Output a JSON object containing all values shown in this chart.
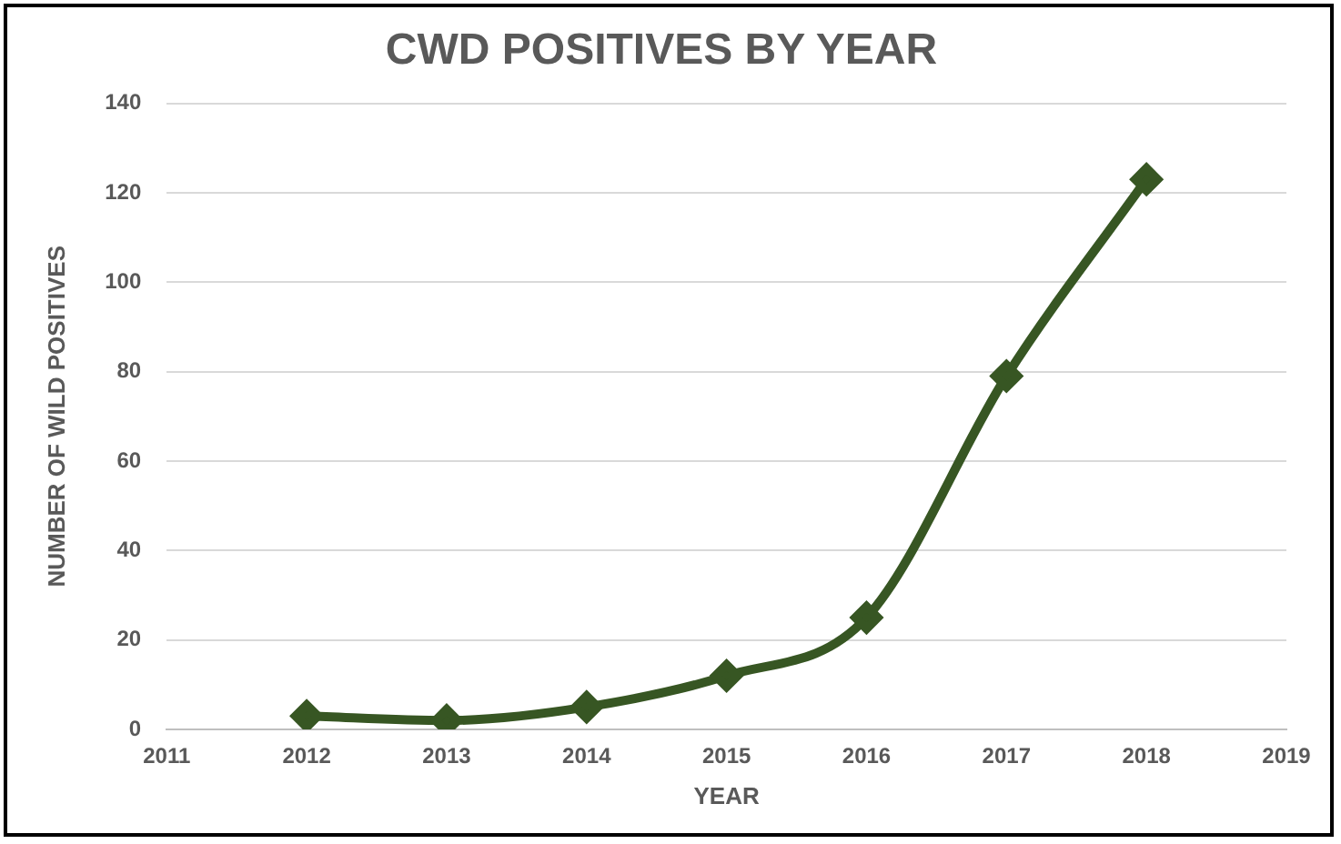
{
  "chart_data": {
    "type": "line",
    "title": "CWD POSITIVES BY YEAR",
    "xlabel": "YEAR",
    "ylabel": "NUMBER OF WILD POSITIVES",
    "x": [
      2012,
      2013,
      2014,
      2015,
      2016,
      2017,
      2018
    ],
    "series": [
      {
        "color": "#375623",
        "values": [
          3,
          2,
          5,
          12,
          25,
          79,
          123
        ]
      }
    ],
    "xlim": [
      2011,
      2019
    ],
    "xticks": [
      2011,
      2012,
      2013,
      2014,
      2015,
      2016,
      2017,
      2018,
      2019
    ],
    "ylim": [
      0,
      140
    ],
    "yticks": [
      0,
      20,
      40,
      60,
      80,
      100,
      120,
      140
    ],
    "grid": "y",
    "legend": false,
    "marker": "diamond",
    "line_style": "solid"
  }
}
